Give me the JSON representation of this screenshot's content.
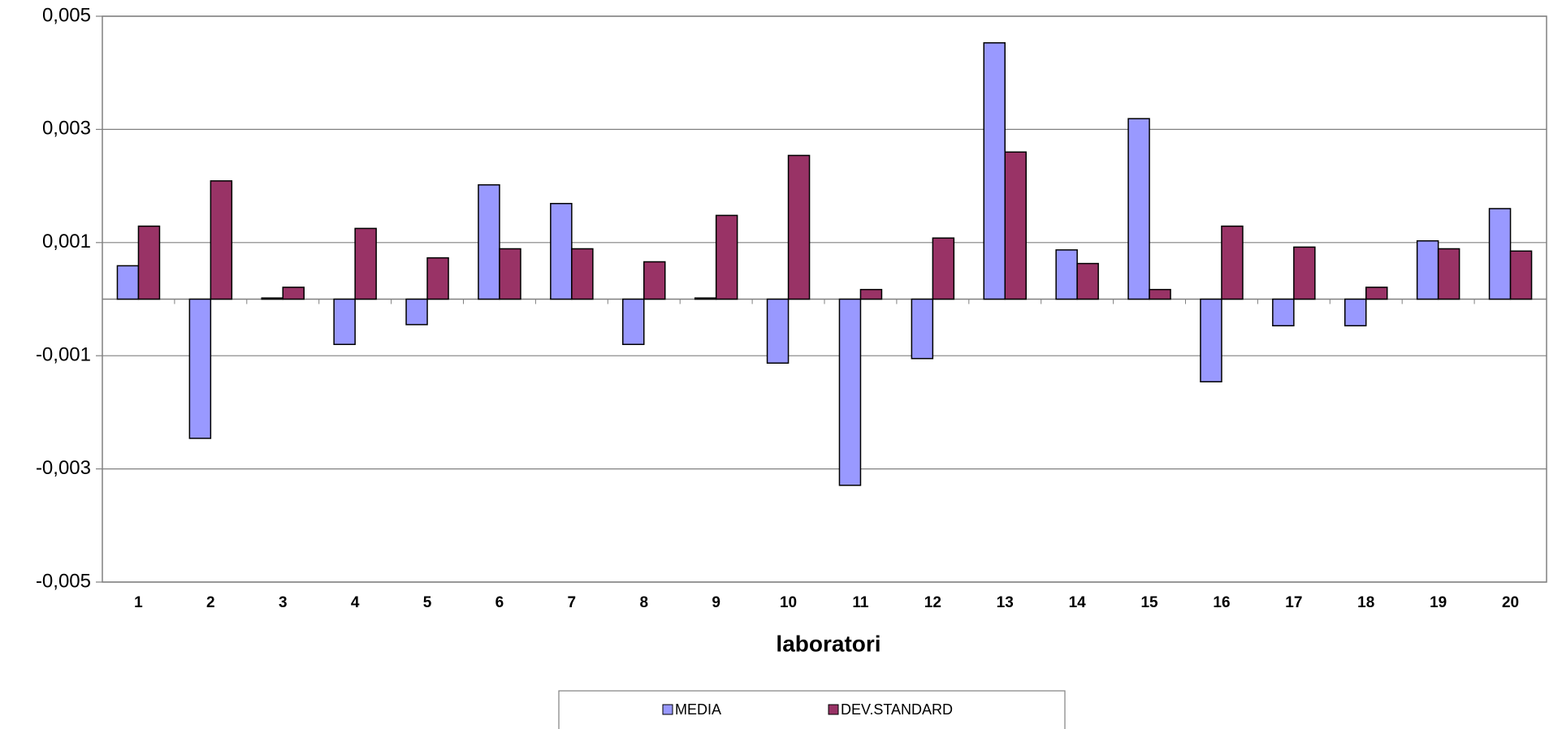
{
  "chart_data": {
    "type": "bar",
    "x_label": "laboratori",
    "categories": [
      "1",
      "2",
      "3",
      "4",
      "5",
      "6",
      "7",
      "8",
      "9",
      "10",
      "11",
      "12",
      "13",
      "14",
      "15",
      "16",
      "17",
      "18",
      "19",
      "20"
    ],
    "series": [
      {
        "name": "MEDIA",
        "color": "#9999ff",
        "values": [
          0.00059,
          -0.00246,
          2e-05,
          -0.0008,
          -0.00045,
          0.00202,
          0.00169,
          -0.0008,
          2e-05,
          -0.00113,
          -0.00329,
          -0.00105,
          0.00453,
          0.00087,
          0.00319,
          -0.00146,
          -0.00047,
          -0.00047,
          0.00103,
          0.0016
        ]
      },
      {
        "name": "DEV.STANDARD",
        "color": "#993366",
        "values": [
          0.00129,
          0.00209,
          0.00021,
          0.00125,
          0.00073,
          0.00089,
          0.00089,
          0.00066,
          0.00148,
          0.00254,
          0.00017,
          0.00108,
          0.0026,
          0.00063,
          0.00017,
          0.00129,
          0.00092,
          0.00021,
          0.00089,
          0.00085
        ]
      }
    ],
    "ylim": [
      -0.005,
      0.005
    ],
    "yticks": [
      {
        "value": -0.005,
        "label": "-0,005"
      },
      {
        "value": -0.003,
        "label": "-0,003"
      },
      {
        "value": -0.001,
        "label": "-0,001"
      },
      {
        "value": 0.001,
        "label": "0,001"
      },
      {
        "value": 0.003,
        "label": "0,003"
      },
      {
        "value": 0.005,
        "label": "0,005"
      }
    ],
    "grid": true,
    "legend": "bottom"
  }
}
